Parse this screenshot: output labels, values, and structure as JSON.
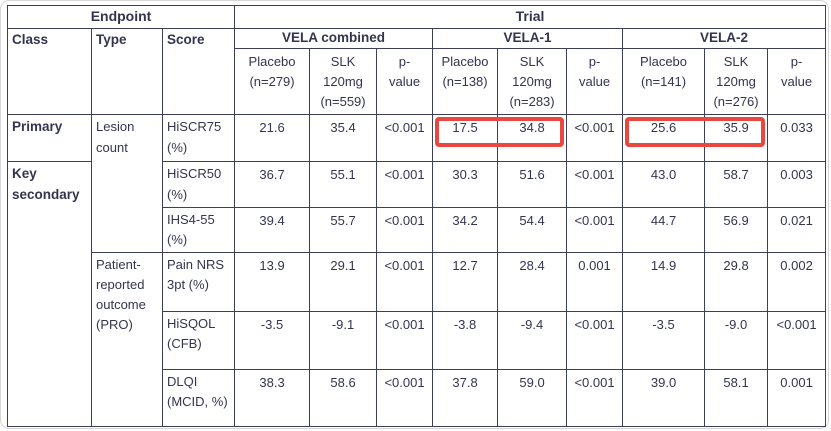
{
  "colors": {
    "text": "#33354e",
    "border": "#3d3f58",
    "highlight": "#e84840"
  },
  "table": {
    "top_headers": {
      "endpoint": "Endpoint",
      "trial": "Trial"
    },
    "columns": {
      "class": "Class",
      "type": "Type",
      "score": "Score"
    },
    "groups": [
      {
        "name": "VELA combined",
        "placebo": "Placebo\n(n=279)",
        "slk": "SLK\n120mg\n(n=559)",
        "p": "p-\nvalue"
      },
      {
        "name": "VELA-1",
        "placebo": "Placebo\n(n=138)",
        "slk": "SLK\n120mg\n(n=283)",
        "p": "p-\nvalue"
      },
      {
        "name": "VELA-2",
        "placebo": "Placebo\n(n=141)",
        "slk": "SLK\n120mg\n(n=276)",
        "p": "p-\nvalue"
      }
    ],
    "rows": [
      {
        "class": "Primary",
        "type": "Lesion\ncount",
        "score": "HiSCR75\n(%)",
        "values": [
          "21.6",
          "35.4",
          "<0.001",
          "17.5",
          "34.8",
          "<0.001",
          "25.6",
          "35.9",
          "0.033"
        ]
      },
      {
        "class": "Key\nsecondary",
        "score": "HiSCR50\n(%)",
        "values": [
          "36.7",
          "55.1",
          "<0.001",
          "30.3",
          "51.6",
          "<0.001",
          "43.0",
          "58.7",
          "0.003"
        ]
      },
      {
        "score": "IHS4-55\n(%)",
        "values": [
          "39.4",
          "55.7",
          "<0.001",
          "34.2",
          "54.4",
          "<0.001",
          "44.7",
          "56.9",
          "0.021"
        ]
      },
      {
        "type": "Patient-\nreported\noutcome\n(PRO)",
        "score": "Pain NRS\n3pt (%)",
        "values": [
          "13.9",
          "29.1",
          "<0.001",
          "12.7",
          "28.4",
          "0.001",
          "14.9",
          "29.8",
          "0.002"
        ]
      },
      {
        "score": "HiSQOL\n(CFB)",
        "values": [
          "-3.5",
          "-9.1",
          "<0.001",
          "-3.8",
          "-9.4",
          "<0.001",
          "-3.5",
          "-9.0",
          "<0.001"
        ]
      },
      {
        "score": "DLQI\n(MCID, %)",
        "values": [
          "38.3",
          "58.6",
          "<0.001",
          "37.8",
          "59.0",
          "<0.001",
          "39.0",
          "58.1",
          "0.001"
        ]
      }
    ]
  },
  "highlights": [
    {
      "from": "cell-v1-placebo",
      "to": "cell-v1-slk"
    },
    {
      "from": "cell-v2-placebo",
      "to": "cell-v2-slk"
    }
  ]
}
